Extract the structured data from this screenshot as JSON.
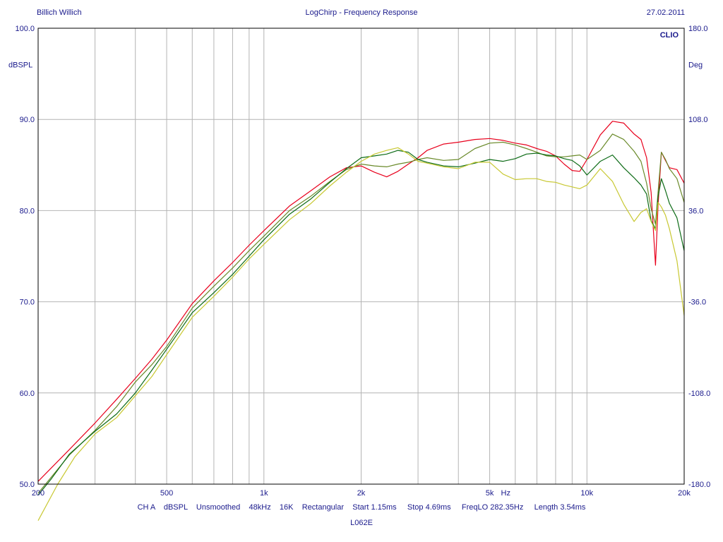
{
  "header": {
    "left": "Billich Willich",
    "center": "LogChirp - Frequency Response",
    "right": "27.02.2011"
  },
  "footer": {
    "settings": "CH A    dBSPL    Unsmoothed    48kHz    16K    Rectangular    Start 1.15ms     Stop 4.69ms     FreqLO 282.35Hz     Length 3.54ms",
    "reference": "L062E"
  },
  "chart_data": {
    "type": "line",
    "brand": "CLIO",
    "x_scale": "log",
    "xlim": [
      200,
      20000
    ],
    "ylim": [
      50,
      100
    ],
    "y2lim": [
      -180,
      180
    ],
    "ylabel": "dBSPL",
    "y2label": "Deg",
    "grid": true,
    "x_ticks": [
      {
        "value": 200,
        "label": "200"
      },
      {
        "value": 500,
        "label": "500"
      },
      {
        "value": 1000,
        "label": "1k"
      },
      {
        "value": 2000,
        "label": "2k"
      },
      {
        "value": 5000,
        "label": "5k"
      },
      {
        "value": 10000,
        "label": "10k"
      },
      {
        "value": 20000,
        "label": "20k"
      }
    ],
    "x_unit_label": "Hz",
    "x_grid": [
      300,
      400,
      500,
      600,
      700,
      800,
      900,
      1000,
      2000,
      3000,
      4000,
      5000,
      6000,
      7000,
      8000,
      9000,
      10000
    ],
    "y_ticks": [
      {
        "value": 50,
        "label": "50.0"
      },
      {
        "value": 60,
        "label": "60.0"
      },
      {
        "value": 70,
        "label": "70.0"
      },
      {
        "value": 80,
        "label": "80.0"
      },
      {
        "value": 90,
        "label": "90.0"
      },
      {
        "value": 100,
        "label": "100.0"
      }
    ],
    "y2_ticks": [
      {
        "value": -180,
        "label": "-180.0"
      },
      {
        "value": -108,
        "label": "-108.0"
      },
      {
        "value": -36,
        "label": "-36.0"
      },
      {
        "value": 36,
        "label": "36.0"
      },
      {
        "value": 108,
        "label": "108.0"
      },
      {
        "value": 180,
        "label": "180.0"
      }
    ],
    "colors": {
      "axis_text": "#1a1a8c",
      "grid": "#b4b4b4",
      "frame": "#000000"
    },
    "series": [
      {
        "color": "#e8001c",
        "x": [
          200,
          250,
          300,
          350,
          400,
          450,
          500,
          600,
          700,
          800,
          900,
          1000,
          1200,
          1400,
          1600,
          1800,
          2000,
          2200,
          2400,
          2600,
          2800,
          3000,
          3200,
          3600,
          4000,
          4500,
          5000,
          5500,
          6000,
          6500,
          7000,
          7500,
          8000,
          8500,
          9000,
          9500,
          10000,
          11000,
          12000,
          13000,
          14000,
          14700,
          15300,
          15800,
          16300,
          16600,
          17000,
          17500,
          18000,
          19000,
          20000
        ],
        "y": [
          50.3,
          53.8,
          56.7,
          59.3,
          61.6,
          63.7,
          65.8,
          69.8,
          72.3,
          74.3,
          76.2,
          77.8,
          80.5,
          82.2,
          83.7,
          84.7,
          84.9,
          84.2,
          83.7,
          84.3,
          85.1,
          85.8,
          86.6,
          87.3,
          87.5,
          87.8,
          87.9,
          87.7,
          87.4,
          87.2,
          86.8,
          86.5,
          86.0,
          85.1,
          84.4,
          84.3,
          85.6,
          88.3,
          89.8,
          89.6,
          88.4,
          87.8,
          85.8,
          82.0,
          74.0,
          80.5,
          86.4,
          85.5,
          84.7,
          84.5,
          83.0
        ]
      },
      {
        "color": "#6a8a2a",
        "x": [
          200,
          250,
          300,
          350,
          400,
          450,
          500,
          600,
          700,
          800,
          900,
          1000,
          1200,
          1400,
          1600,
          1800,
          2000,
          2200,
          2400,
          2600,
          2800,
          3000,
          3200,
          3600,
          4000,
          4500,
          5000,
          5500,
          6000,
          6500,
          7000,
          7500,
          8000,
          8500,
          9000,
          9500,
          10000,
          11000,
          12000,
          13000,
          14000,
          14700,
          15300,
          15800,
          16300,
          16600,
          17000,
          17500,
          18000,
          19000,
          20000
        ],
        "y": [
          49.0,
          53.2,
          55.9,
          58.5,
          61.2,
          63.1,
          65.1,
          69.3,
          71.7,
          73.7,
          75.6,
          77.2,
          80.0,
          81.6,
          83.2,
          84.5,
          85.1,
          84.9,
          84.8,
          85.1,
          85.3,
          85.6,
          85.8,
          85.5,
          85.6,
          86.8,
          87.4,
          87.5,
          87.2,
          86.8,
          86.4,
          86.0,
          85.9,
          85.9,
          86.0,
          86.1,
          85.6,
          86.6,
          88.4,
          87.8,
          86.5,
          85.4,
          83.0,
          80.2,
          78.5,
          82.0,
          86.4,
          85.6,
          84.6,
          83.5,
          80.9
        ]
      },
      {
        "color": "#0d6b16",
        "x": [
          200,
          220,
          250,
          300,
          350,
          400,
          450,
          500,
          600,
          700,
          800,
          900,
          1000,
          1200,
          1400,
          1600,
          1800,
          2000,
          2200,
          2400,
          2600,
          2800,
          3000,
          3200,
          3600,
          4000,
          4500,
          5000,
          5500,
          6000,
          6500,
          7000,
          7500,
          8000,
          8500,
          9000,
          9500,
          10000,
          11000,
          12000,
          13000,
          14000,
          14700,
          15300,
          15800,
          16300,
          16600,
          17000,
          17500,
          18000,
          19000,
          20000
        ],
        "y": [
          48.8,
          50.6,
          53.3,
          55.8,
          57.7,
          60.0,
          62.5,
          64.8,
          68.8,
          71.0,
          73.0,
          75.0,
          76.8,
          79.6,
          81.3,
          83.1,
          84.6,
          85.8,
          86.0,
          86.2,
          86.6,
          86.4,
          85.6,
          85.3,
          84.9,
          84.8,
          85.2,
          85.6,
          85.4,
          85.7,
          86.2,
          86.3,
          86.1,
          86.0,
          85.7,
          85.5,
          84.9,
          83.9,
          85.4,
          86.1,
          84.7,
          83.6,
          82.8,
          81.8,
          78.9,
          78.0,
          81.5,
          83.5,
          82.2,
          80.8,
          79.2,
          75.6
        ]
      },
      {
        "color": "#c8c832",
        "x": [
          200,
          230,
          260,
          300,
          350,
          400,
          450,
          500,
          600,
          700,
          800,
          900,
          1000,
          1200,
          1400,
          1600,
          1800,
          2000,
          2200,
          2400,
          2600,
          2800,
          3000,
          3200,
          3600,
          4000,
          4500,
          5000,
          5500,
          6000,
          6500,
          7000,
          7500,
          8000,
          8500,
          9000,
          9500,
          10000,
          11000,
          12000,
          13000,
          14000,
          14700,
          15300,
          15800,
          16300,
          16600,
          17000,
          17500,
          18000,
          19000,
          20000
        ],
        "y": [
          46.0,
          50.0,
          53.0,
          55.5,
          57.3,
          59.7,
          61.8,
          64.2,
          68.3,
          70.6,
          72.7,
          74.7,
          76.3,
          79.0,
          80.8,
          82.7,
          84.2,
          85.4,
          86.2,
          86.6,
          86.9,
          86.2,
          85.4,
          85.2,
          84.8,
          84.6,
          85.3,
          85.3,
          84.0,
          83.4,
          83.5,
          83.5,
          83.2,
          83.1,
          82.8,
          82.6,
          82.4,
          82.8,
          84.6,
          83.2,
          80.7,
          78.8,
          79.8,
          80.2,
          78.8,
          77.8,
          80.9,
          80.4,
          79.5,
          78.0,
          74.5,
          68.5
        ]
      }
    ]
  }
}
